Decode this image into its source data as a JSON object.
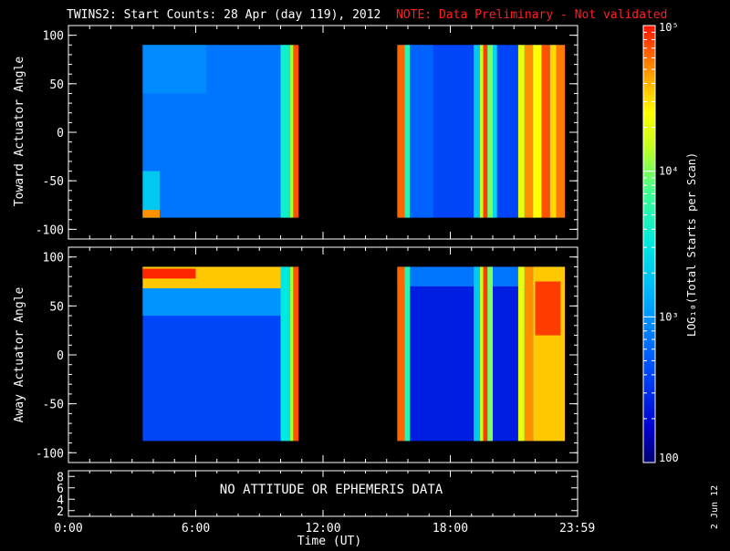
{
  "chart_data": {
    "type": "heatmap",
    "title": "TWINS2: Start Counts: 28 Apr (day 119), 2012",
    "note": "NOTE: Data Preliminary - Not validated",
    "xlabel": "Time (UT)",
    "xrange_hours": [
      0,
      24
    ],
    "x_tick_labels": [
      "0:00",
      "6:00",
      "12:00",
      "18:00",
      "23:59"
    ],
    "x_tick_hours": [
      0,
      6,
      12,
      18,
      23.983
    ],
    "data_coverage_hours": [
      [
        3.5,
        10.85
      ],
      [
        15.5,
        23.4
      ]
    ],
    "panels": [
      {
        "ylabel": "Toward Actuator Angle",
        "yrange": [
          -110,
          110
        ],
        "yticks": [
          100,
          50,
          0,
          -50,
          -100
        ],
        "ytick_labels": [
          "100",
          "50",
          "0",
          "-50",
          "-100"
        ],
        "bands": [
          {
            "t0": 3.5,
            "t1": 10.3,
            "a0": -88,
            "a1": 90,
            "log": 2.85
          },
          {
            "t0": 3.5,
            "t1": 6.5,
            "a0": 40,
            "a1": 90,
            "log": 2.95
          },
          {
            "t0": 3.5,
            "t1": 4.3,
            "a0": -88,
            "a1": -40,
            "log": 3.3
          },
          {
            "t0": 3.5,
            "t1": 4.3,
            "a0": -88,
            "a1": -80,
            "log": 4.7
          },
          {
            "t0": 10.0,
            "t1": 10.45,
            "a0": -88,
            "a1": 90,
            "log": 3.6
          },
          {
            "t0": 10.45,
            "t1": 10.6,
            "a0": -88,
            "a1": 90,
            "log": 4.1
          },
          {
            "t0": 10.6,
            "t1": 10.85,
            "a0": -88,
            "a1": 90,
            "log": 4.85
          },
          {
            "t0": 15.5,
            "t1": 23.4,
            "a0": -88,
            "a1": 90,
            "log": 2.6
          },
          {
            "t0": 15.5,
            "t1": 15.85,
            "a0": -88,
            "a1": 90,
            "log": 4.8
          },
          {
            "t0": 15.85,
            "t1": 16.1,
            "a0": -88,
            "a1": 90,
            "log": 3.7
          },
          {
            "t0": 16.1,
            "t1": 17.2,
            "a0": -88,
            "a1": 90,
            "log": 2.75
          },
          {
            "t0": 19.1,
            "t1": 19.4,
            "a0": -88,
            "a1": 90,
            "log": 3.3
          },
          {
            "t0": 19.4,
            "t1": 19.55,
            "a0": -88,
            "a1": 90,
            "log": 4.2
          },
          {
            "t0": 19.55,
            "t1": 19.75,
            "a0": -88,
            "a1": 90,
            "log": 4.9
          },
          {
            "t0": 19.75,
            "t1": 20.0,
            "a0": -88,
            "a1": 90,
            "log": 4.0
          },
          {
            "t0": 20.0,
            "t1": 20.2,
            "a0": -88,
            "a1": 90,
            "log": 3.4
          },
          {
            "t0": 21.2,
            "t1": 21.5,
            "a0": -88,
            "a1": 90,
            "log": 4.3
          },
          {
            "t0": 21.5,
            "t1": 21.9,
            "a0": -88,
            "a1": 90,
            "log": 4.7
          },
          {
            "t0": 21.9,
            "t1": 22.3,
            "a0": -88,
            "a1": 90,
            "log": 4.4
          },
          {
            "t0": 22.3,
            "t1": 22.7,
            "a0": -88,
            "a1": 90,
            "log": 4.85
          },
          {
            "t0": 22.7,
            "t1": 23.0,
            "a0": -88,
            "a1": 90,
            "log": 4.5
          },
          {
            "t0": 23.0,
            "t1": 23.4,
            "a0": -88,
            "a1": 90,
            "log": 4.75
          }
        ]
      },
      {
        "ylabel": "Away Actuator Angle",
        "yrange": [
          -110,
          110
        ],
        "yticks": [
          100,
          50,
          0,
          -50,
          -100
        ],
        "ytick_labels": [
          "100",
          "50",
          "0",
          "-50",
          "-100"
        ],
        "bands": [
          {
            "t0": 3.5,
            "t1": 10.3,
            "a0": -88,
            "a1": 90,
            "log": 2.6
          },
          {
            "t0": 3.5,
            "t1": 10.3,
            "a0": 40,
            "a1": 70,
            "log": 3.0
          },
          {
            "t0": 3.5,
            "t1": 10.3,
            "a0": 68,
            "a1": 90,
            "log": 4.55
          },
          {
            "t0": 3.5,
            "t1": 6.0,
            "a0": 78,
            "a1": 88,
            "log": 4.95
          },
          {
            "t0": 10.0,
            "t1": 10.45,
            "a0": -88,
            "a1": 90,
            "log": 3.5
          },
          {
            "t0": 10.45,
            "t1": 10.6,
            "a0": -88,
            "a1": 90,
            "log": 4.1
          },
          {
            "t0": 10.6,
            "t1": 10.85,
            "a0": -88,
            "a1": 90,
            "log": 4.85
          },
          {
            "t0": 15.5,
            "t1": 23.4,
            "a0": -88,
            "a1": 90,
            "log": 2.4
          },
          {
            "t0": 15.5,
            "t1": 23.4,
            "a0": 70,
            "a1": 90,
            "log": 2.85
          },
          {
            "t0": 15.5,
            "t1": 15.85,
            "a0": -88,
            "a1": 90,
            "log": 4.8
          },
          {
            "t0": 15.85,
            "t1": 16.1,
            "a0": -88,
            "a1": 90,
            "log": 3.7
          },
          {
            "t0": 19.1,
            "t1": 19.4,
            "a0": -88,
            "a1": 90,
            "log": 3.3
          },
          {
            "t0": 19.4,
            "t1": 19.55,
            "a0": -88,
            "a1": 90,
            "log": 4.2
          },
          {
            "t0": 19.55,
            "t1": 19.75,
            "a0": -88,
            "a1": 90,
            "log": 4.9
          },
          {
            "t0": 19.75,
            "t1": 20.0,
            "a0": -88,
            "a1": 90,
            "log": 4.0
          },
          {
            "t0": 21.2,
            "t1": 21.5,
            "a0": -88,
            "a1": 90,
            "log": 4.3
          },
          {
            "t0": 21.5,
            "t1": 21.9,
            "a0": -88,
            "a1": 90,
            "log": 4.7
          },
          {
            "t0": 21.9,
            "t1": 23.4,
            "a0": -88,
            "a1": 90,
            "log": 4.55
          },
          {
            "t0": 22.0,
            "t1": 23.2,
            "a0": 20,
            "a1": 75,
            "log": 4.9
          }
        ]
      }
    ],
    "aux_panel": {
      "yticks": [
        8,
        6,
        4,
        2
      ],
      "ytick_labels": [
        "8",
        "6",
        "4",
        "2"
      ],
      "yrange": [
        1,
        9
      ],
      "message": "NO ATTITUDE OR EPHEMERIS DATA"
    },
    "colorbar": {
      "label": "LOG₁₀(Total Starts per Scan)",
      "log_range": [
        2,
        5
      ],
      "tick_logs": [
        5,
        4,
        3,
        2
      ],
      "tick_labels": [
        "10⁵",
        "10⁴",
        "10³",
        "100"
      ]
    },
    "date_stamp": "2 Jun 12"
  }
}
